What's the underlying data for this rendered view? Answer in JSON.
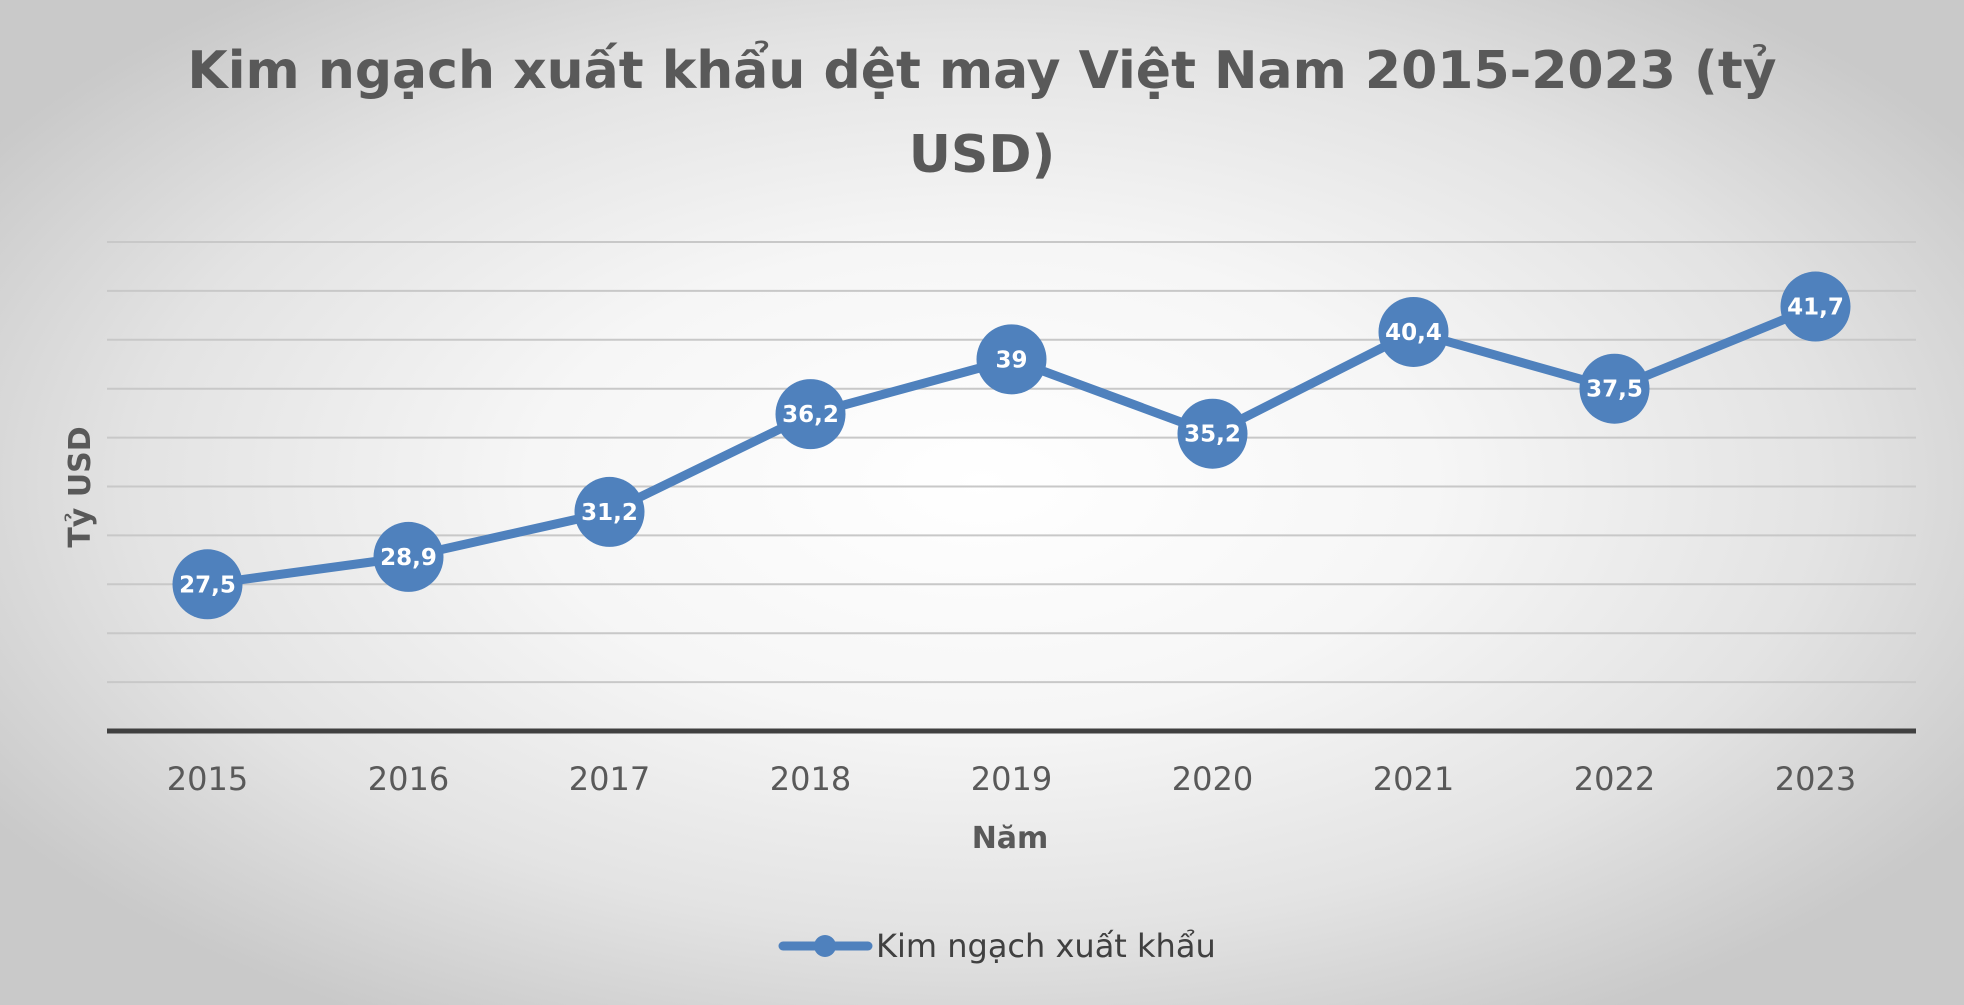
{
  "chart_data": {
    "type": "line",
    "title_lines": [
      "Kim ngạch xuất khẩu dệt may Việt Nam 2015-2023 (tỷ",
      "USD)"
    ],
    "xlabel": "Năm",
    "ylabel": "Tỷ USD",
    "categories": [
      "2015",
      "2016",
      "2017",
      "2018",
      "2019",
      "2020",
      "2021",
      "2022",
      "2023"
    ],
    "series": [
      {
        "name": "Kim ngạch xuất khẩu",
        "values": [
          27.5,
          28.9,
          31.2,
          36.2,
          39,
          35.2,
          40.4,
          37.5,
          41.7
        ],
        "labels": [
          "27,5",
          "28,9",
          "31,2",
          "36,2",
          "39",
          "35,2",
          "40,4",
          "37,5",
          "41,7"
        ],
        "color": "#4f81bd"
      }
    ],
    "ylim": [
      20,
      45
    ],
    "y_tick_labels_visible": false,
    "grid": true,
    "legend_position": "bottom",
    "axis_line_color": "#404040",
    "grid_color": "#c8c8c8"
  }
}
